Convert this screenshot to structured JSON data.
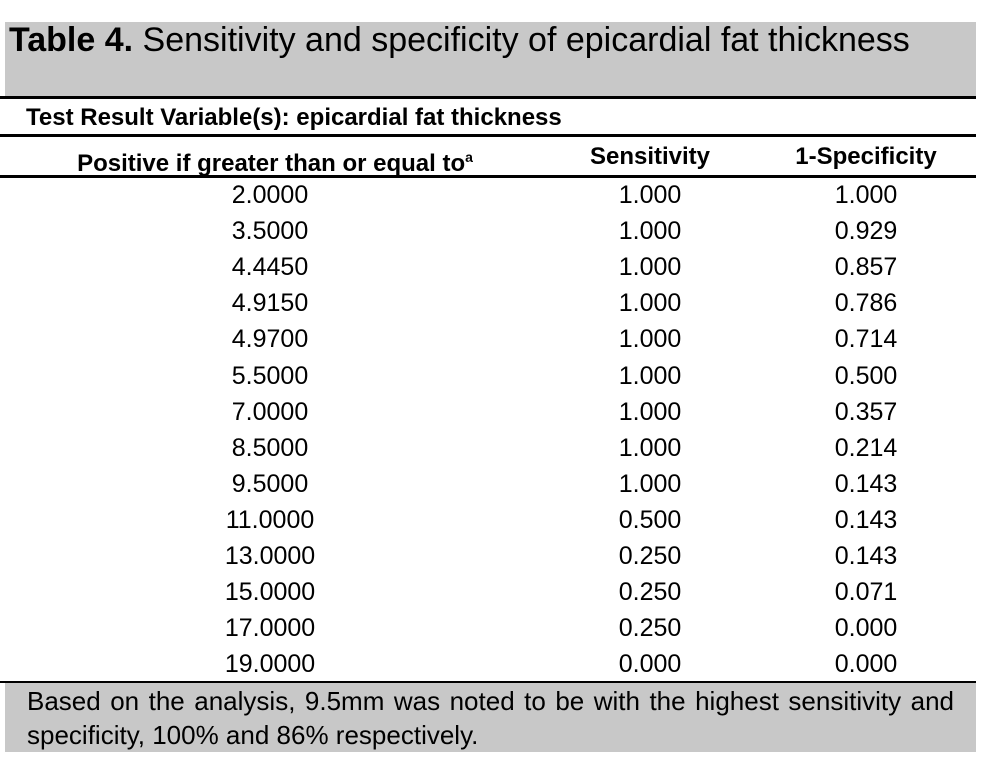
{
  "title": {
    "label": "Table 4.",
    "text": "Sensitivity and specificity of epicardial fat thickness"
  },
  "subheader": "Test Result Variable(s): epicardial fat thickness",
  "columns": [
    "Positive if greater than or equal to",
    "Sensitivity",
    "1-Specificity"
  ],
  "column_footnote_mark": "a",
  "rows": [
    [
      "2.0000",
      "1.000",
      "1.000"
    ],
    [
      "3.5000",
      "1.000",
      "0.929"
    ],
    [
      "4.4450",
      "1.000",
      "0.857"
    ],
    [
      "4.9150",
      "1.000",
      "0.786"
    ],
    [
      "4.9700",
      "1.000",
      "0.714"
    ],
    [
      "5.5000",
      "1.000",
      "0.500"
    ],
    [
      "7.0000",
      "1.000",
      "0.357"
    ],
    [
      "8.5000",
      "1.000",
      "0.214"
    ],
    [
      "9.5000",
      "1.000",
      "0.143"
    ],
    [
      "11.0000",
      "0.500",
      "0.143"
    ],
    [
      "13.0000",
      "0.250",
      "0.143"
    ],
    [
      "15.0000",
      "0.250",
      "0.071"
    ],
    [
      "17.0000",
      "0.250",
      "0.000"
    ],
    [
      "19.0000",
      "0.000",
      "0.000"
    ]
  ],
  "footer": "Based on the analysis, 9.5mm was noted to be with the highest sensitivity and specificity, 100% and 86% respectively.",
  "colors": {
    "title_bg": "#c8c8c8",
    "footer_bg": "#c8c8c8"
  }
}
